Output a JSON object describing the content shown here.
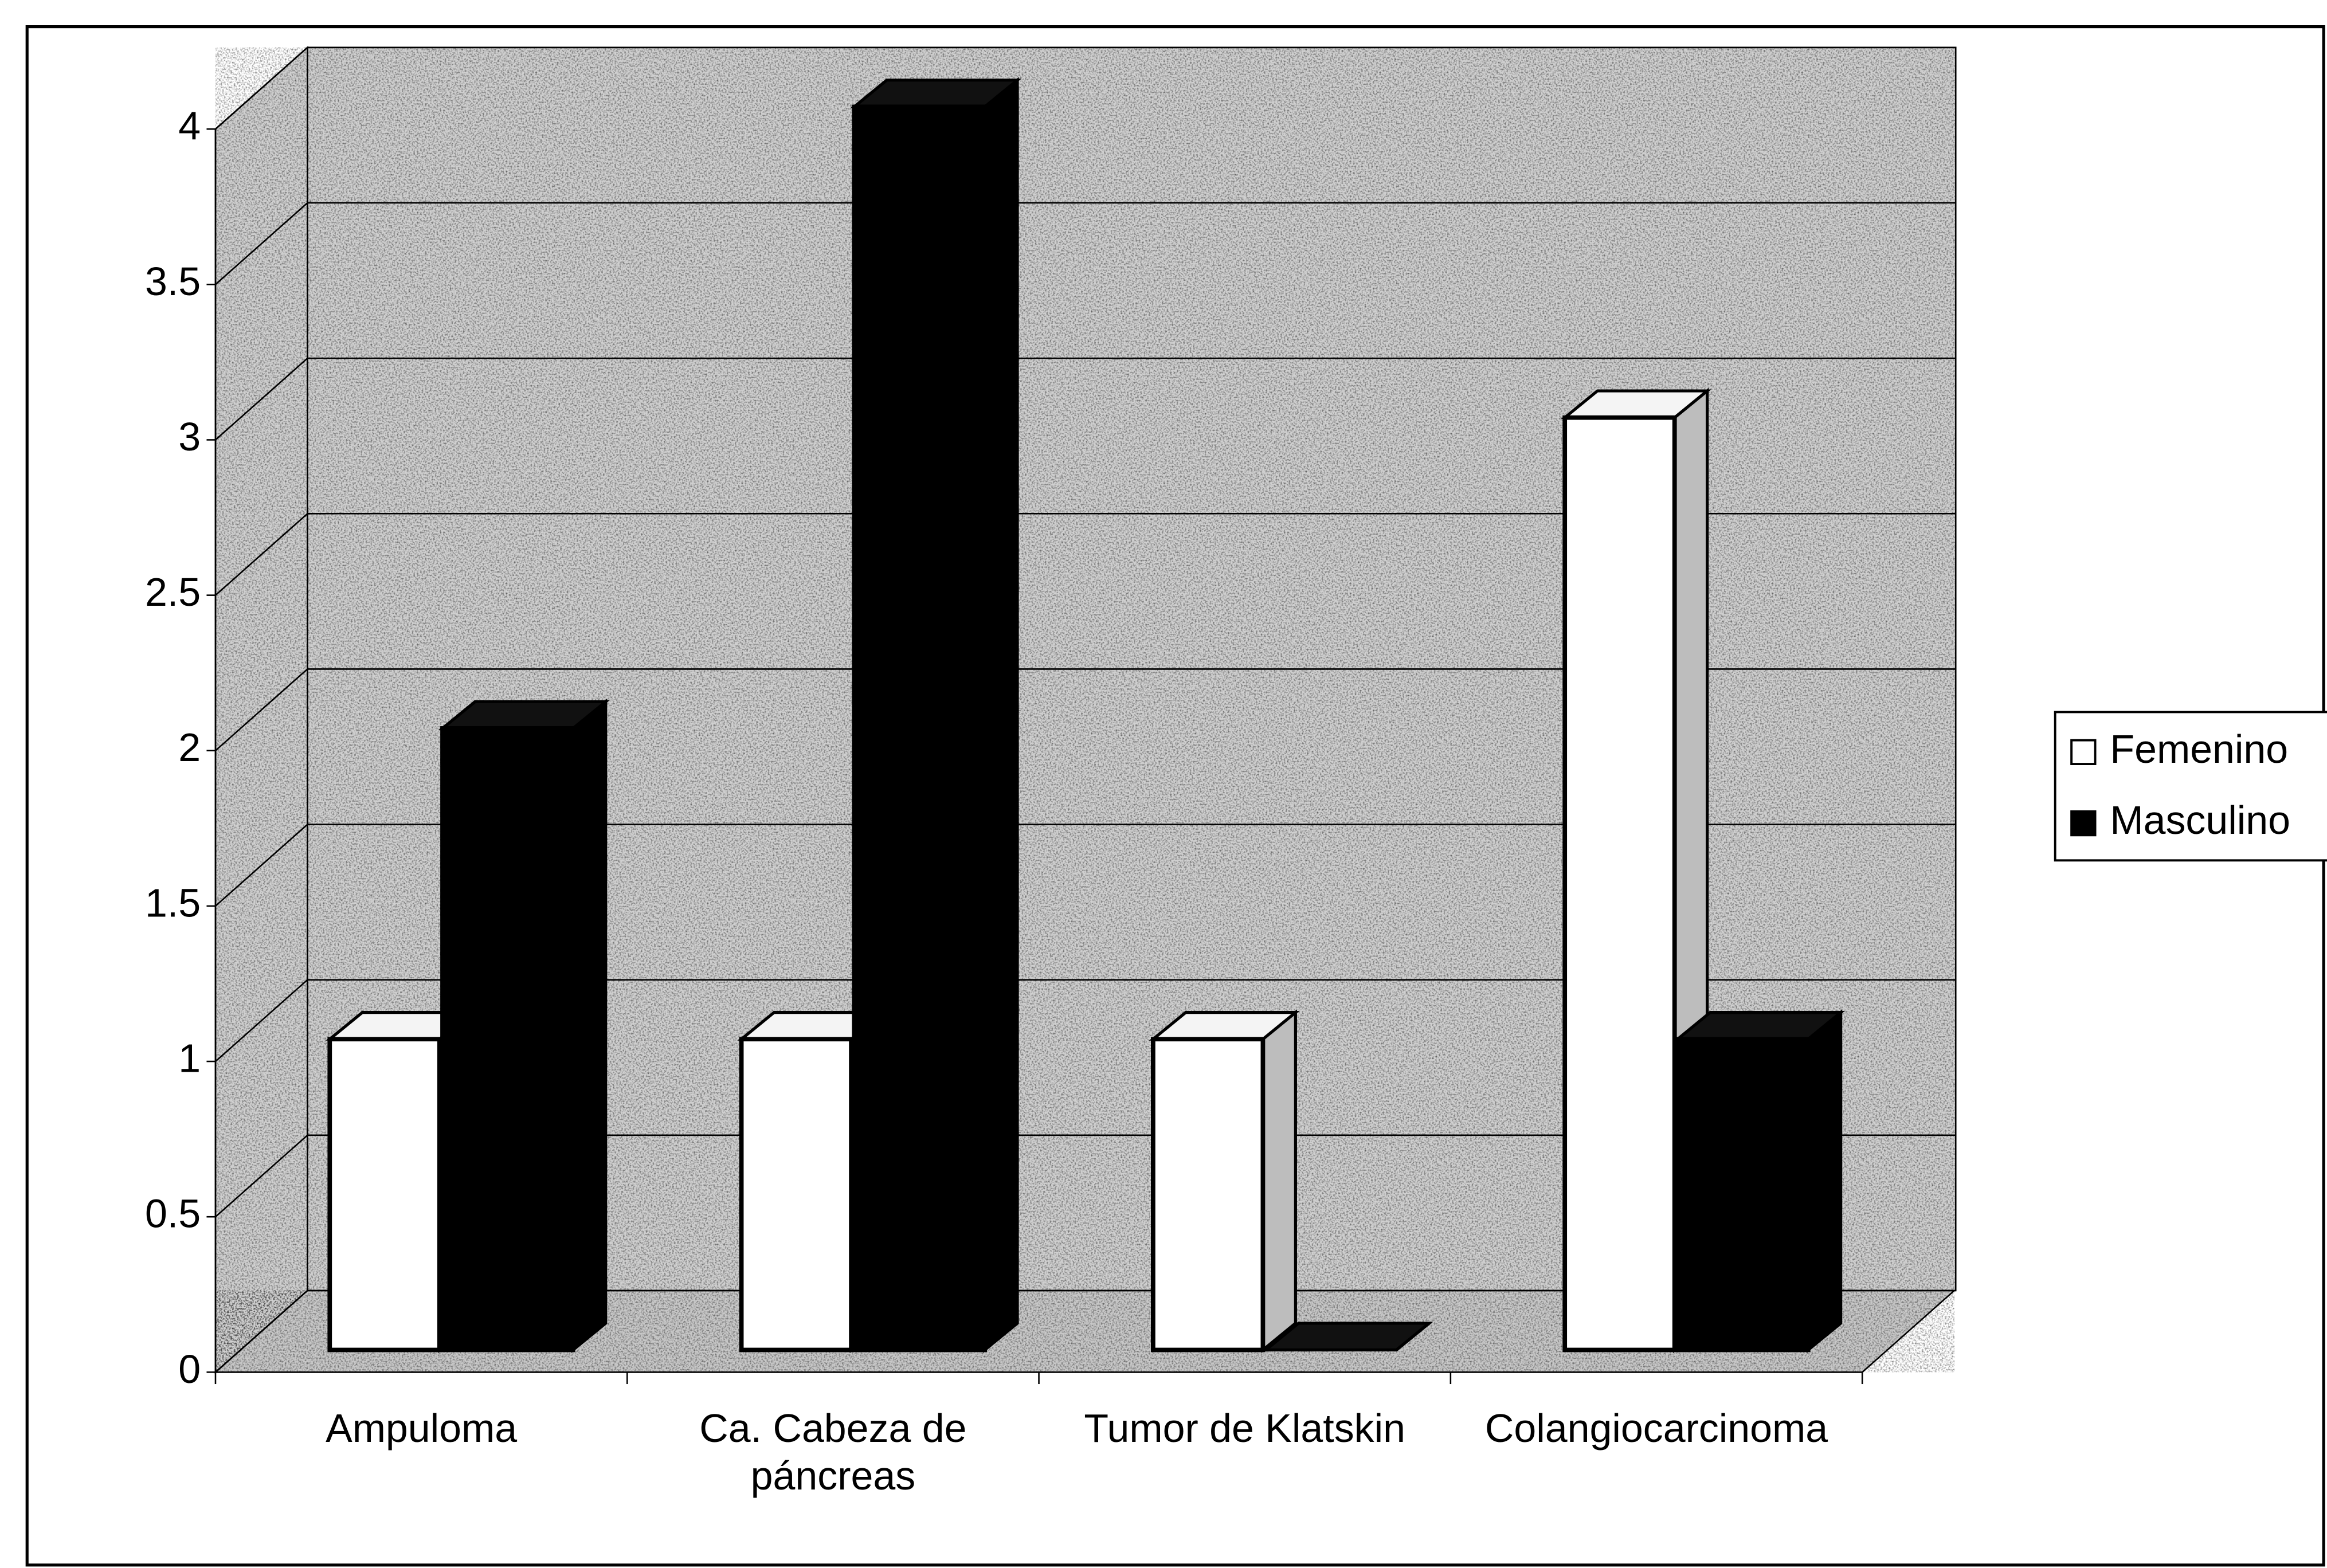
{
  "chart_data": {
    "type": "bar3d",
    "categories": [
      "Ampuloma",
      "Ca. Cabeza de páncreas",
      "Tumor de Klatskin",
      "Colangiocarcinoma"
    ],
    "series": [
      {
        "name": "Femenino",
        "color": "#ffffff",
        "values": [
          1,
          1,
          1,
          3
        ]
      },
      {
        "name": "Masculino",
        "color": "#000000",
        "values": [
          2,
          4,
          0,
          1
        ]
      }
    ],
    "ylim": [
      0,
      4
    ],
    "yticks": [
      0,
      0.5,
      1,
      1.5,
      2,
      2.5,
      3,
      3.5,
      4
    ],
    "grid": true,
    "legend": "right"
  }
}
